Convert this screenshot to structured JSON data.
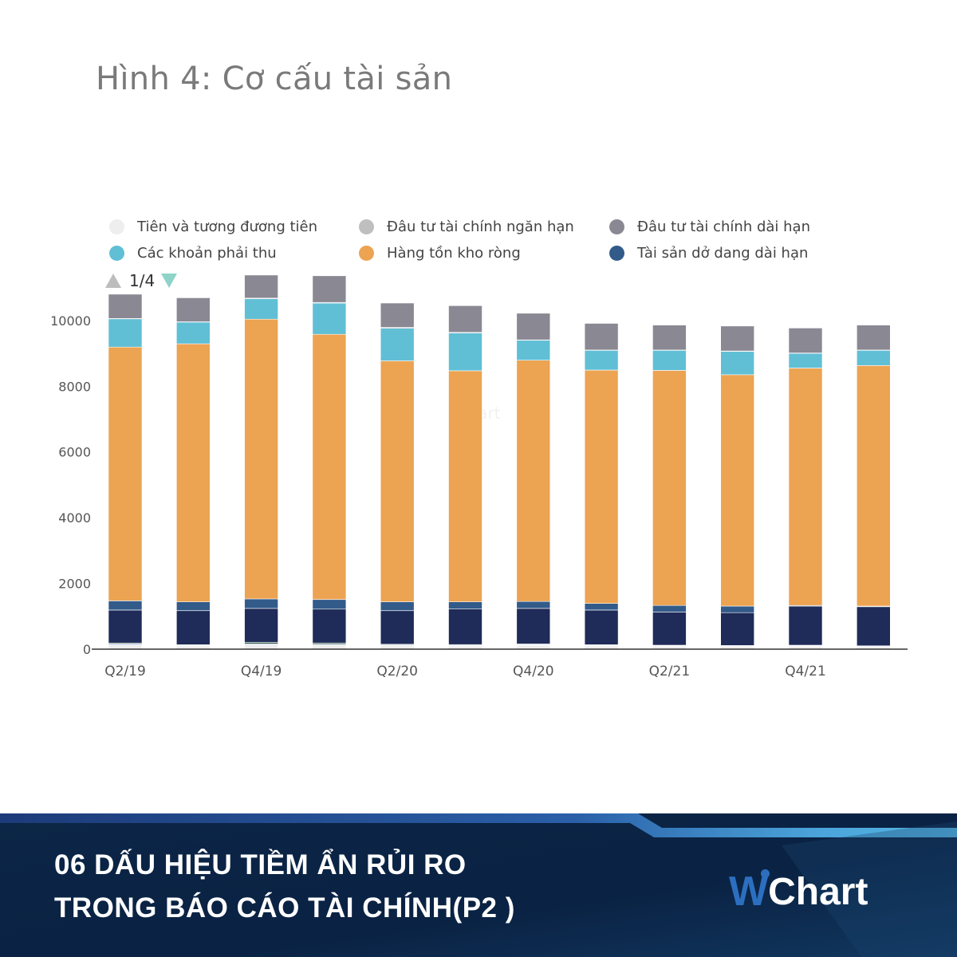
{
  "figure_title": "Hình 4: Cơ cấu tài sản",
  "legend": {
    "pager": "1/4",
    "items": [
      {
        "label": "Tiên và tương đương tiên",
        "color": "#eeeeee"
      },
      {
        "label": "Đâu tư tài chính ngăn hạn",
        "color": "#bfbfbf"
      },
      {
        "label": "Đâu tư tài chính dài hạn",
        "color": "#8a8893"
      },
      {
        "label": "Các khoản phải thu",
        "color": "#60bfd5"
      },
      {
        "label": "Hàng tồn kho ròng",
        "color": "#eca352"
      },
      {
        "label": "Tài sản dở dang dài hạn",
        "color": "#325b8a"
      }
    ]
  },
  "chart_data": {
    "type": "bar",
    "stacked": true,
    "categories": [
      "Q2/19",
      "Q3/19",
      "Q4/19",
      "Q1/20",
      "Q2/20",
      "Q3/20",
      "Q4/20",
      "Q1/21",
      "Q2/21",
      "Q3/21",
      "Q4/21",
      "Q1/22"
    ],
    "tick_labels": [
      "Q2/19",
      "Q4/19",
      "Q2/20",
      "Q4/20",
      "Q2/21",
      "Q4/21"
    ],
    "yticks": [
      0,
      2000,
      4000,
      6000,
      8000,
      10000
    ],
    "ylim": [
      0,
      11500
    ],
    "grid": false,
    "legend_position": "top",
    "watermark": "Chart",
    "series": [
      {
        "name": "Tiên và tương đương tiên",
        "color": "#eeeeee",
        "values": [
          120,
          100,
          130,
          120,
          110,
          100,
          120,
          100,
          90,
          80,
          90,
          70
        ]
      },
      {
        "name": "other-lightblue",
        "color": "#bcc7e6",
        "values": [
          40,
          20,
          30,
          30,
          20,
          20,
          20,
          20,
          20,
          20,
          20,
          20
        ]
      },
      {
        "name": "other-green",
        "color": "#2f5a4e",
        "values": [
          30,
          20,
          50,
          40,
          20,
          20,
          20,
          20,
          10,
          10,
          10,
          10
        ]
      },
      {
        "name": "other-navy",
        "color": "#1f2b58",
        "values": [
          1000,
          1030,
          1030,
          1030,
          1020,
          1080,
          1080,
          1050,
          1010,
          1000,
          1190,
          1190
        ]
      },
      {
        "name": "Tài sản dở dang dài hạn",
        "color": "#325b8a",
        "values": [
          280,
          270,
          290,
          290,
          270,
          220,
          210,
          200,
          200,
          200,
          20,
          20
        ]
      },
      {
        "name": "Hàng tồn kho ròng",
        "color": "#eca352",
        "values": [
          7720,
          7850,
          8510,
          8070,
          7330,
          7030,
          7340,
          7100,
          7150,
          7040,
          7220,
          7320
        ]
      },
      {
        "name": "Các khoản phải thu",
        "color": "#60bfd5",
        "values": [
          860,
          660,
          620,
          950,
          990,
          1150,
          610,
          600,
          610,
          710,
          450,
          460
        ]
      },
      {
        "name": "Đâu tư tài chính ngăn hạn",
        "color": "#bfbfbf",
        "values": [
          10,
          10,
          20,
          20,
          30,
          20,
          10,
          10,
          10,
          10,
          10,
          10
        ]
      },
      {
        "name": "Đâu tư tài chính dài hạn",
        "color": "#8a8893",
        "values": [
          740,
          730,
          700,
          810,
          740,
          810,
          810,
          810,
          760,
          760,
          760,
          760
        ]
      }
    ]
  },
  "banner": {
    "line1": "06 DẤU HIỆU TIỀM ẨN RỦI RO",
    "line2": "TRONG BÁO CÁO TÀI CHÍNH(P2 )",
    "logo_w": "W",
    "logo_text": "Chart"
  }
}
